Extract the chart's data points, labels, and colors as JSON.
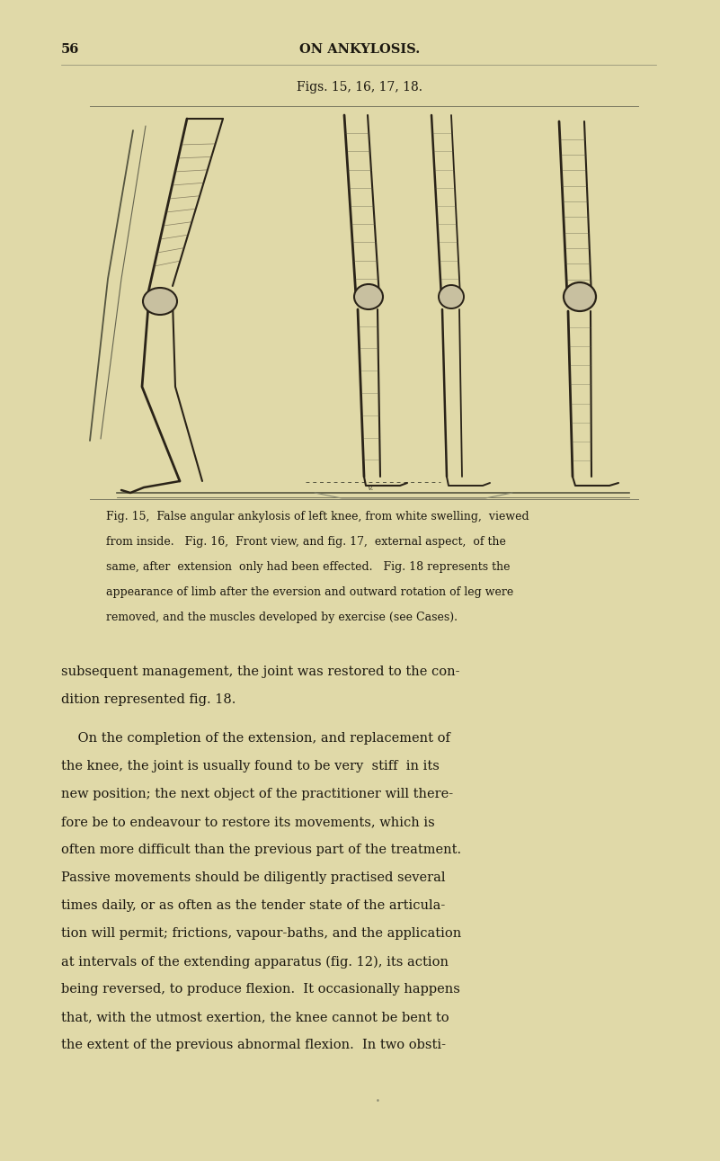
{
  "bg_color": "#e0d9a8",
  "page_width": 8.01,
  "page_height": 12.91,
  "dpi": 100,
  "page_num": "56",
  "header": "ON ANKYLOSIS.",
  "fig_caption_title": "Figs. 15, 16, 17, 18.",
  "fig_desc_lines": [
    "Fig. 15,  False angular ankylosis of left knee, from white swelling,  viewed",
    "from inside.   Fig. 16,  Front view, and fig. 17,  external aspect,  of the",
    "same, after  extension  only had been effected.   Fig. 18 represents the",
    "appearance of limb after the eversion and outward rotation of leg were",
    "removed, and the muscles developed by exercise (see Cases)."
  ],
  "body_lines": [
    "subsequent management, the joint was restored to the con-",
    "dition represented fig. 18.",
    "",
    "    On the completion of the extension, and replacement of",
    "the knee, the joint is usually found to be very  stiff  in its",
    "new position; the next object of the practitioner will there-",
    "fore be to endeavour to restore its movements, which is",
    "often more difficult than the previous part of the treatment.",
    "Passive movements should be diligently practised several",
    "times daily, or as often as the tender state of the articula-",
    "tion will permit; frictions, vapour-baths, and the application",
    "at intervals of the extending apparatus (fig. 12), its action",
    "being reversed, to produce flexion.  It occasionally happens",
    "that, with the utmost exertion, the knee cannot be bent to",
    "the extent of the previous abnormal flexion.  In two obsti-"
  ],
  "text_color": "#1c1810",
  "ink_color": "#2a2318"
}
